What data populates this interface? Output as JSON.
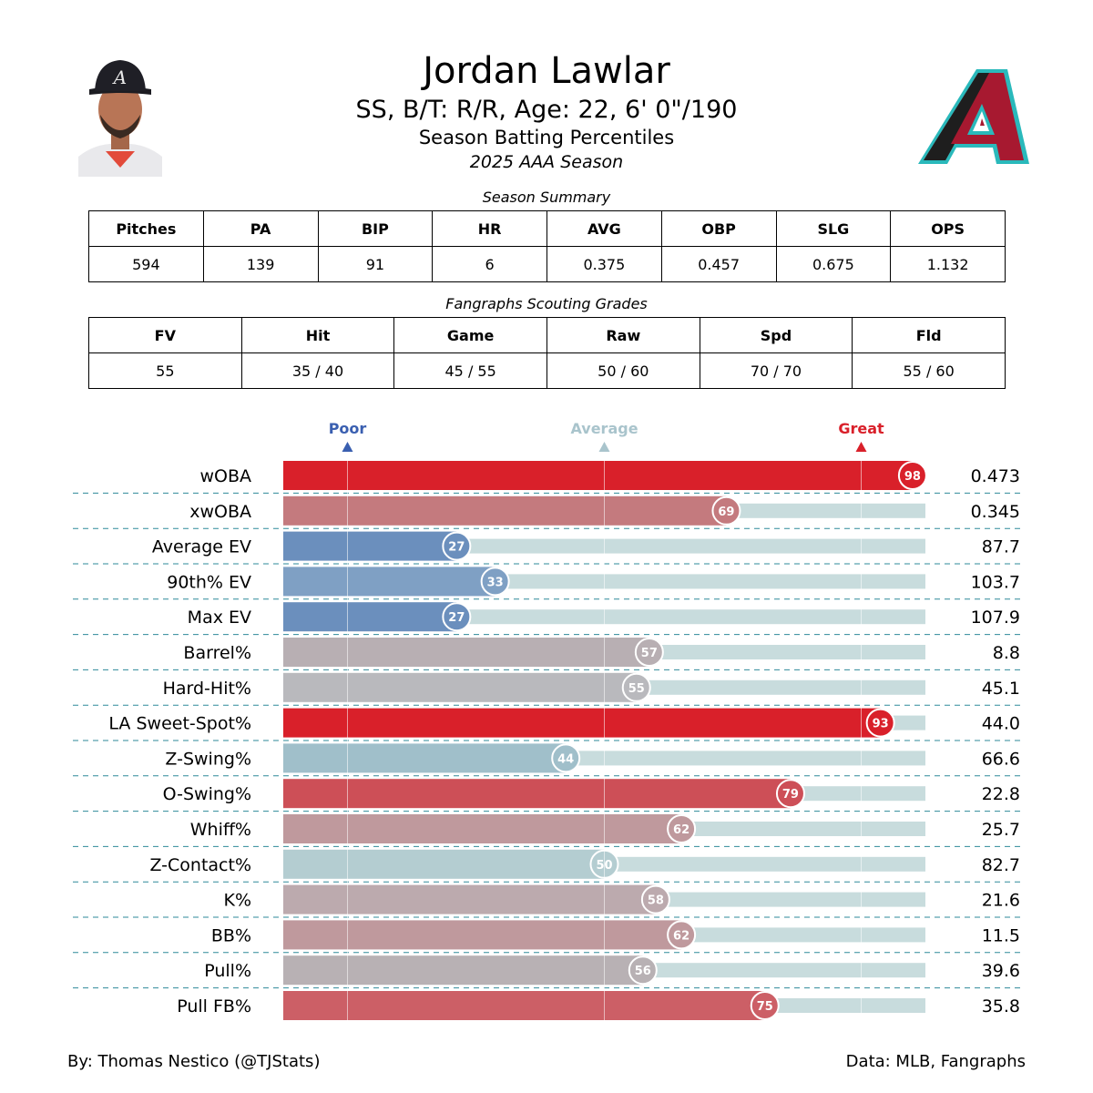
{
  "player": {
    "name": "Jordan Lawlar",
    "bio": "SS, B/T: R/R, Age: 22, 6' 0\"/190",
    "subtitle": "Season Batting Percentiles",
    "season": "2025 AAA Season"
  },
  "colors": {
    "great": "#d9202a",
    "average": "#a9c4cc",
    "poor": "#3a5fb0",
    "track": "#c8dcdd",
    "divider": "#2e8a9a"
  },
  "season_summary": {
    "title": "Season Summary",
    "headers": [
      "Pitches",
      "PA",
      "BIP",
      "HR",
      "AVG",
      "OBP",
      "SLG",
      "OPS"
    ],
    "values": [
      "594",
      "139",
      "91",
      "6",
      "0.375",
      "0.457",
      "0.675",
      "1.132"
    ]
  },
  "scouting": {
    "title": "Fangraphs Scouting Grades",
    "headers": [
      "FV",
      "Hit",
      "Game",
      "Raw",
      "Spd",
      "Fld"
    ],
    "values": [
      "55",
      "35 / 40",
      "45 / 55",
      "50 / 60",
      "70 / 70",
      "55 / 60"
    ]
  },
  "chart_data": {
    "type": "bar",
    "orientation": "horizontal",
    "title": "Season Batting Percentiles",
    "xlim": [
      0,
      100
    ],
    "markers": [
      {
        "label": "Poor",
        "value": 10,
        "color": "#3a5fb0"
      },
      {
        "label": "Average",
        "value": 50,
        "color": "#a9c4cc"
      },
      {
        "label": "Great",
        "value": 90,
        "color": "#d9202a"
      }
    ],
    "metrics": [
      {
        "label": "wOBA",
        "percentile": 98,
        "value": "0.473",
        "color": "#d9202a"
      },
      {
        "label": "xwOBA",
        "percentile": 69,
        "value": "0.345",
        "color": "#c47a7e"
      },
      {
        "label": "Average EV",
        "percentile": 27,
        "value": "87.7",
        "color": "#6b8fbd"
      },
      {
        "label": "90th% EV",
        "percentile": 33,
        "value": "103.7",
        "color": "#7fa0c4"
      },
      {
        "label": "Max EV",
        "percentile": 27,
        "value": "107.9",
        "color": "#6b8fbd"
      },
      {
        "label": "Barrel%",
        "percentile": 57,
        "value": "8.8",
        "color": "#b8afb3"
      },
      {
        "label": "Hard-Hit%",
        "percentile": 55,
        "value": "45.1",
        "color": "#b9b9bd"
      },
      {
        "label": "LA Sweet-Spot%",
        "percentile": 93,
        "value": "44.0",
        "color": "#d9202a"
      },
      {
        "label": "Z-Swing%",
        "percentile": 44,
        "value": "66.6",
        "color": "#a0bfca"
      },
      {
        "label": "O-Swing%",
        "percentile": 79,
        "value": "22.8",
        "color": "#cd4f57"
      },
      {
        "label": "Whiff%",
        "percentile": 62,
        "value": "25.7",
        "color": "#bf999d"
      },
      {
        "label": "Z-Contact%",
        "percentile": 50,
        "value": "82.7",
        "color": "#b4cdd1"
      },
      {
        "label": "K%",
        "percentile": 58,
        "value": "21.6",
        "color": "#bcaaae"
      },
      {
        "label": "BB%",
        "percentile": 62,
        "value": "11.5",
        "color": "#bf999d"
      },
      {
        "label": "Pull%",
        "percentile": 56,
        "value": "39.6",
        "color": "#b8b1b4"
      },
      {
        "label": "Pull FB%",
        "percentile": 75,
        "value": "35.8",
        "color": "#cc5f66"
      }
    ]
  },
  "footer": {
    "credit": "By: Thomas Nestico (@TJStats)",
    "source": "Data: MLB, Fangraphs"
  }
}
